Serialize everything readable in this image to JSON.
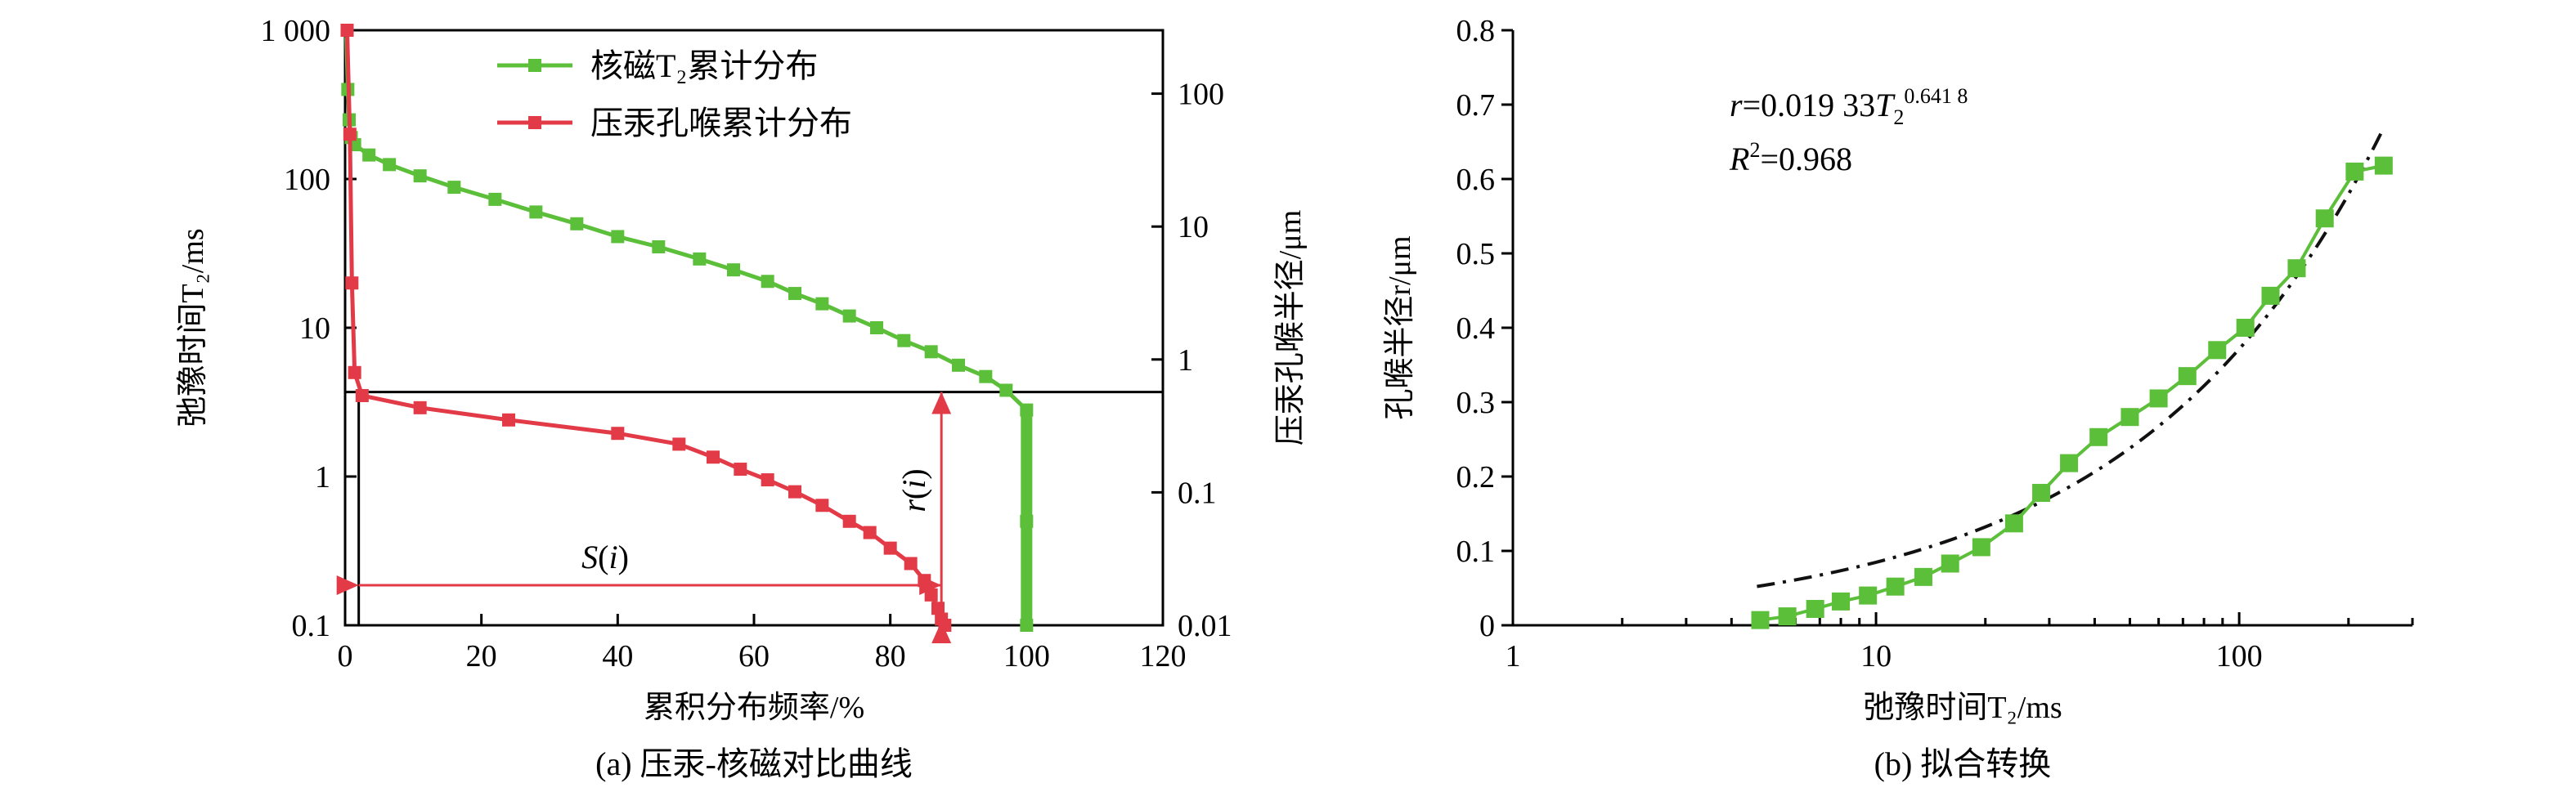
{
  "chart_data": [
    {
      "panel": "a",
      "type": "line",
      "caption": "(a) 压汞-核磁对比曲线",
      "xlabel": "累积分布频率/%",
      "ylabel_left": "弛豫时间T₂/ms",
      "ylabel_right": "压汞孔喉半径/μm",
      "xlim": [
        0,
        120
      ],
      "ylim_left": [
        0.1,
        1000
      ],
      "ylim_right": [
        0.01,
        300
      ],
      "xscale": "linear",
      "yscale": "log",
      "x_ticks": [
        "0",
        "20",
        "40",
        "60",
        "80",
        "100",
        "120"
      ],
      "y_left_ticks": [
        "0.1",
        "1",
        "10",
        "100",
        "1 000"
      ],
      "y_right_ticks": [
        "0.01",
        "0.1",
        "1",
        "10",
        "100"
      ],
      "legend": [
        "核磁T₂累计分布",
        "压汞孔喉累计分布"
      ],
      "legend_position": "top-center",
      "annotations": {
        "horizontal": "S(i)",
        "vertical": "r(i)"
      },
      "series": [
        {
          "name": "核磁T₂累计分布",
          "axis": "left",
          "color": "#5cbf3a",
          "x": [
            0.2,
            0.4,
            0.6,
            0.9,
            1.4,
            3.5,
            6.5,
            11,
            16,
            22,
            28,
            34,
            40,
            46,
            52,
            57,
            62,
            66,
            70,
            74,
            78,
            82,
            86,
            90,
            94,
            97,
            100,
            100,
            100
          ],
          "values": [
            900,
            400,
            250,
            190,
            170,
            145,
            125,
            105,
            88,
            73,
            60,
            50,
            41,
            35,
            29,
            24.5,
            20.5,
            17,
            14.5,
            12,
            10,
            8.2,
            6.9,
            5.6,
            4.7,
            3.8,
            2.8,
            0.5,
            0.1
          ]
        },
        {
          "name": "压汞孔喉累计分布",
          "axis": "left",
          "color": "#e23a47",
          "x": [
            0.3,
            0.7,
            1,
            1.4,
            2.5,
            11,
            24,
            40,
            49,
            54,
            58,
            62,
            66,
            70,
            74,
            77,
            80,
            83,
            85,
            86,
            87,
            87.5,
            88
          ],
          "values": [
            1000,
            200,
            20,
            5,
            3.5,
            2.9,
            2.4,
            1.95,
            1.65,
            1.35,
            1.12,
            0.95,
            0.79,
            0.64,
            0.5,
            0.42,
            0.33,
            0.26,
            0.2,
            0.16,
            0.13,
            0.11,
            0.1
          ]
        }
      ]
    },
    {
      "panel": "b",
      "type": "scatter",
      "caption": "(b) 拟合转换",
      "xlabel": "弛豫时间T₂/ms",
      "ylabel": "孔喉半径r/μm",
      "xscale": "log",
      "xlim": [
        1,
        300
      ],
      "ylim": [
        0,
        0.8
      ],
      "x_ticks": [
        "1",
        "10",
        "100"
      ],
      "y_ticks": [
        "0",
        "0.1",
        "0.2",
        "0.3",
        "0.4",
        "0.5",
        "0.6",
        "0.7",
        "0.8"
      ],
      "equation": "r=0.019 33T₂^0.641 8",
      "r_squared": "R²=0.968",
      "fit": {
        "a": 0.01933,
        "b": 0.6418,
        "x_range": [
          4.7,
          250
        ]
      },
      "series": [
        {
          "name": "",
          "color": "#5cbf3a",
          "x": [
            4.8,
            5.7,
            6.8,
            8.0,
            9.5,
            11.3,
            13.5,
            16,
            19.5,
            24,
            28.5,
            34,
            41,
            50,
            60,
            72,
            87,
            104,
            122,
            144,
            172,
            208,
            250
          ],
          "values": [
            0.007,
            0.012,
            0.022,
            0.032,
            0.04,
            0.052,
            0.065,
            0.083,
            0.105,
            0.137,
            0.178,
            0.218,
            0.253,
            0.28,
            0.305,
            0.335,
            0.37,
            0.4,
            0.443,
            0.48,
            0.547,
            0.61,
            0.618
          ]
        }
      ]
    }
  ]
}
